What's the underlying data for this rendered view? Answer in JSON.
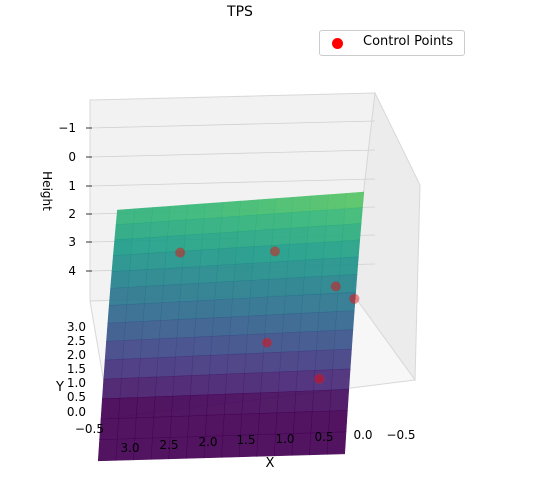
{
  "chart_data": {
    "type": "surface3d",
    "title": "TPS",
    "xlabel": "X",
    "ylabel": "Y",
    "zlabel": "Height",
    "x_ticks": [
      "3.0",
      "2.5",
      "2.0",
      "1.5",
      "1.0",
      "0.5",
      "0.0",
      "−0.5"
    ],
    "y_ticks": [
      "3.0",
      "2.5",
      "2.0",
      "1.5",
      "1.0",
      "0.5",
      "0.0",
      "−0.5"
    ],
    "z_ticks": [
      "−1",
      "0",
      "1",
      "2",
      "3",
      "4"
    ],
    "xlim": [
      -0.5,
      3.2
    ],
    "ylim": [
      -0.5,
      3.2
    ],
    "zlim": [
      -1.5,
      4.8
    ],
    "colormap": "viridis",
    "legend": {
      "label": "Control Points",
      "placement": "top-right",
      "color": "#ff0000"
    },
    "control_points": [
      {
        "x": 2.2,
        "y": 1.3,
        "z": 3.0
      },
      {
        "x": 1.0,
        "y": 1.0,
        "z": 2.6
      },
      {
        "x": 1.0,
        "y": 2.0,
        "z": 0.8
      },
      {
        "x": 0.2,
        "y": 1.1,
        "z": 1.5
      },
      {
        "x": -0.05,
        "y": 1.2,
        "z": 1.2
      },
      {
        "x": 0.3,
        "y": 2.2,
        "z": -0.2
      }
    ]
  }
}
